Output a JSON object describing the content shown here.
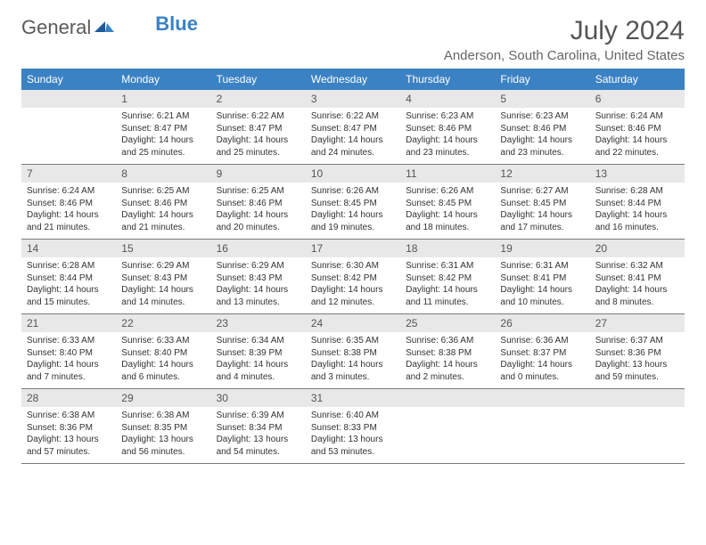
{
  "brand": {
    "part1": "General",
    "part2": "Blue"
  },
  "title": "July 2024",
  "location": "Anderson, South Carolina, United States",
  "colors": {
    "header_bg": "#3b82c4",
    "header_text": "#ffffff",
    "daynum_bg": "#e8e8e8",
    "body_text": "#333333",
    "title_text": "#555555",
    "border": "#7a7a7a"
  },
  "weekdays": [
    "Sunday",
    "Monday",
    "Tuesday",
    "Wednesday",
    "Thursday",
    "Friday",
    "Saturday"
  ],
  "weeks": [
    [
      {
        "n": "",
        "sr": "",
        "ss": "",
        "dl": ""
      },
      {
        "n": "1",
        "sr": "6:21 AM",
        "ss": "8:47 PM",
        "dl": "14 hours and 25 minutes."
      },
      {
        "n": "2",
        "sr": "6:22 AM",
        "ss": "8:47 PM",
        "dl": "14 hours and 25 minutes."
      },
      {
        "n": "3",
        "sr": "6:22 AM",
        "ss": "8:47 PM",
        "dl": "14 hours and 24 minutes."
      },
      {
        "n": "4",
        "sr": "6:23 AM",
        "ss": "8:46 PM",
        "dl": "14 hours and 23 minutes."
      },
      {
        "n": "5",
        "sr": "6:23 AM",
        "ss": "8:46 PM",
        "dl": "14 hours and 23 minutes."
      },
      {
        "n": "6",
        "sr": "6:24 AM",
        "ss": "8:46 PM",
        "dl": "14 hours and 22 minutes."
      }
    ],
    [
      {
        "n": "7",
        "sr": "6:24 AM",
        "ss": "8:46 PM",
        "dl": "14 hours and 21 minutes."
      },
      {
        "n": "8",
        "sr": "6:25 AM",
        "ss": "8:46 PM",
        "dl": "14 hours and 21 minutes."
      },
      {
        "n": "9",
        "sr": "6:25 AM",
        "ss": "8:46 PM",
        "dl": "14 hours and 20 minutes."
      },
      {
        "n": "10",
        "sr": "6:26 AM",
        "ss": "8:45 PM",
        "dl": "14 hours and 19 minutes."
      },
      {
        "n": "11",
        "sr": "6:26 AM",
        "ss": "8:45 PM",
        "dl": "14 hours and 18 minutes."
      },
      {
        "n": "12",
        "sr": "6:27 AM",
        "ss": "8:45 PM",
        "dl": "14 hours and 17 minutes."
      },
      {
        "n": "13",
        "sr": "6:28 AM",
        "ss": "8:44 PM",
        "dl": "14 hours and 16 minutes."
      }
    ],
    [
      {
        "n": "14",
        "sr": "6:28 AM",
        "ss": "8:44 PM",
        "dl": "14 hours and 15 minutes."
      },
      {
        "n": "15",
        "sr": "6:29 AM",
        "ss": "8:43 PM",
        "dl": "14 hours and 14 minutes."
      },
      {
        "n": "16",
        "sr": "6:29 AM",
        "ss": "8:43 PM",
        "dl": "14 hours and 13 minutes."
      },
      {
        "n": "17",
        "sr": "6:30 AM",
        "ss": "8:42 PM",
        "dl": "14 hours and 12 minutes."
      },
      {
        "n": "18",
        "sr": "6:31 AM",
        "ss": "8:42 PM",
        "dl": "14 hours and 11 minutes."
      },
      {
        "n": "19",
        "sr": "6:31 AM",
        "ss": "8:41 PM",
        "dl": "14 hours and 10 minutes."
      },
      {
        "n": "20",
        "sr": "6:32 AM",
        "ss": "8:41 PM",
        "dl": "14 hours and 8 minutes."
      }
    ],
    [
      {
        "n": "21",
        "sr": "6:33 AM",
        "ss": "8:40 PM",
        "dl": "14 hours and 7 minutes."
      },
      {
        "n": "22",
        "sr": "6:33 AM",
        "ss": "8:40 PM",
        "dl": "14 hours and 6 minutes."
      },
      {
        "n": "23",
        "sr": "6:34 AM",
        "ss": "8:39 PM",
        "dl": "14 hours and 4 minutes."
      },
      {
        "n": "24",
        "sr": "6:35 AM",
        "ss": "8:38 PM",
        "dl": "14 hours and 3 minutes."
      },
      {
        "n": "25",
        "sr": "6:36 AM",
        "ss": "8:38 PM",
        "dl": "14 hours and 2 minutes."
      },
      {
        "n": "26",
        "sr": "6:36 AM",
        "ss": "8:37 PM",
        "dl": "14 hours and 0 minutes."
      },
      {
        "n": "27",
        "sr": "6:37 AM",
        "ss": "8:36 PM",
        "dl": "13 hours and 59 minutes."
      }
    ],
    [
      {
        "n": "28",
        "sr": "6:38 AM",
        "ss": "8:36 PM",
        "dl": "13 hours and 57 minutes."
      },
      {
        "n": "29",
        "sr": "6:38 AM",
        "ss": "8:35 PM",
        "dl": "13 hours and 56 minutes."
      },
      {
        "n": "30",
        "sr": "6:39 AM",
        "ss": "8:34 PM",
        "dl": "13 hours and 54 minutes."
      },
      {
        "n": "31",
        "sr": "6:40 AM",
        "ss": "8:33 PM",
        "dl": "13 hours and 53 minutes."
      },
      {
        "n": "",
        "sr": "",
        "ss": "",
        "dl": ""
      },
      {
        "n": "",
        "sr": "",
        "ss": "",
        "dl": ""
      },
      {
        "n": "",
        "sr": "",
        "ss": "",
        "dl": ""
      }
    ]
  ],
  "labels": {
    "sunrise": "Sunrise: ",
    "sunset": "Sunset: ",
    "daylight": "Daylight: "
  }
}
